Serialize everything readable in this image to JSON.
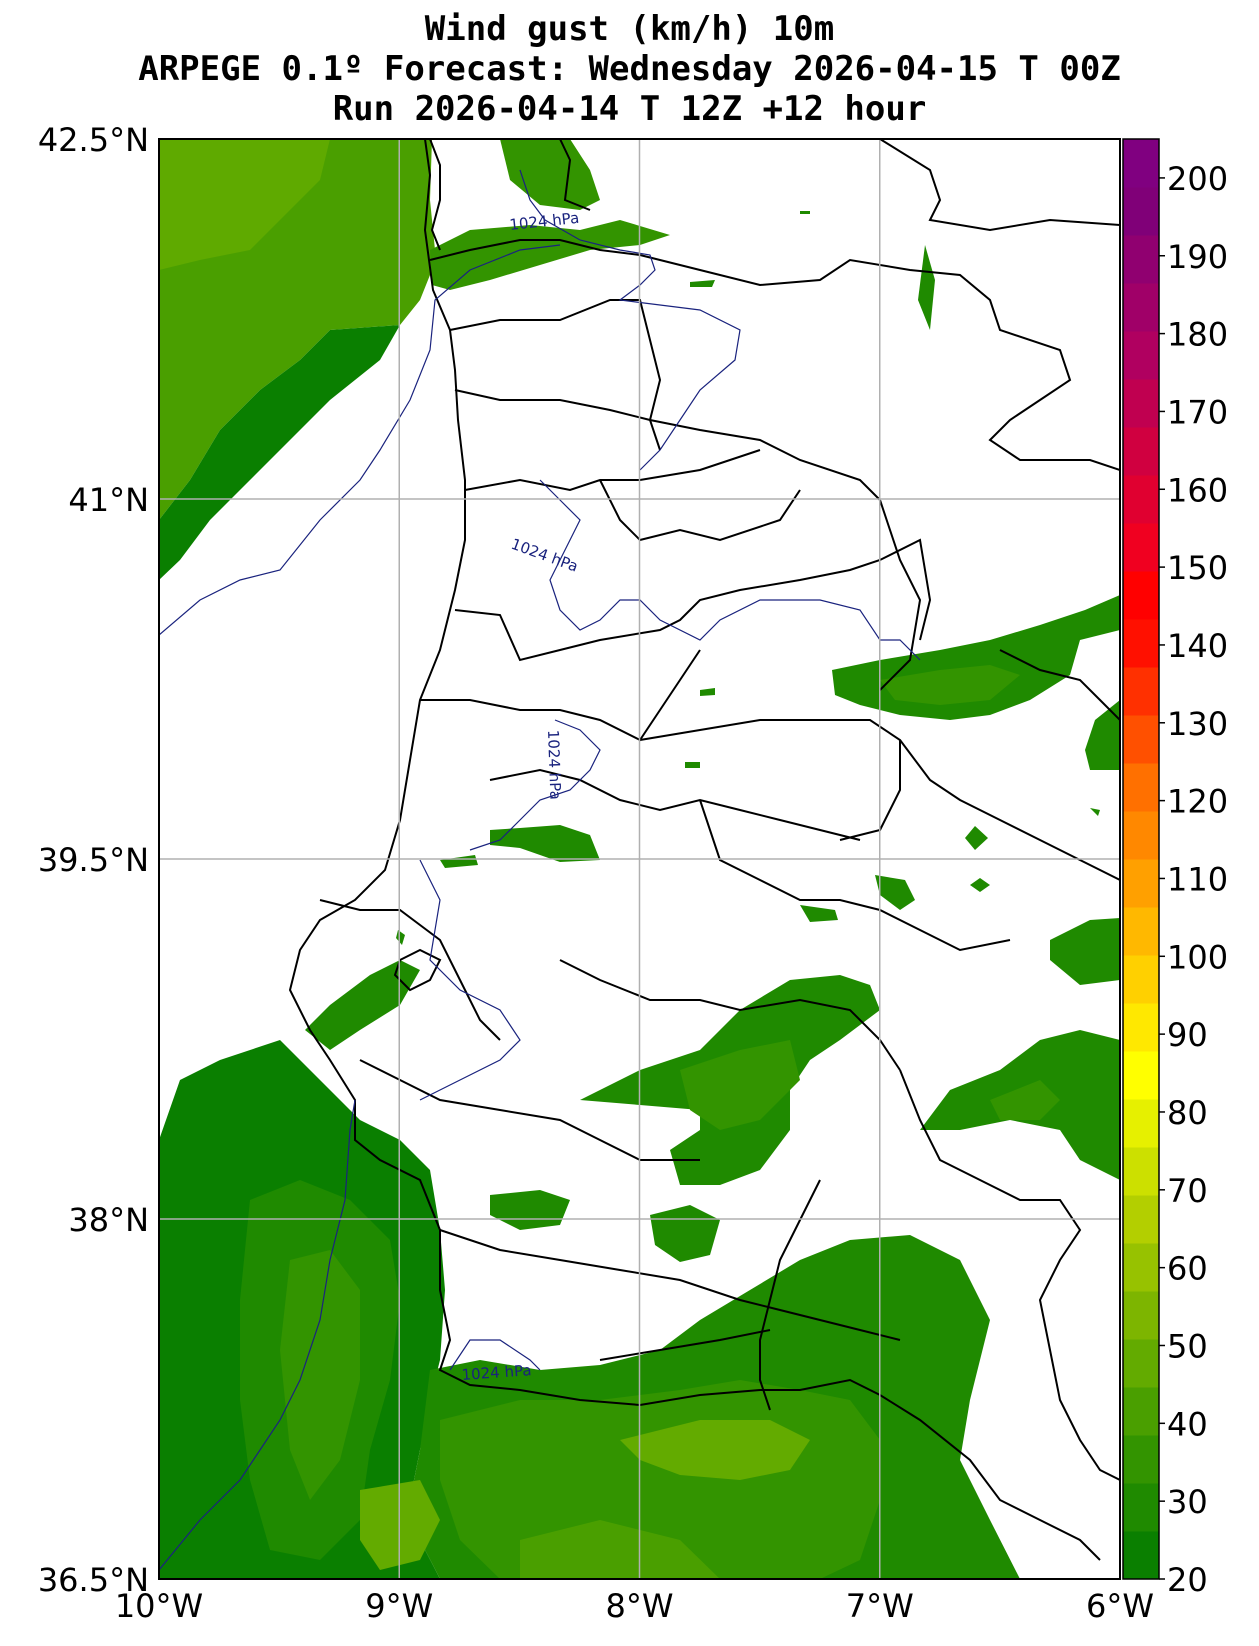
{
  "title": {
    "line1": "Wind gust (km/h) 10m",
    "line2": "ARPEGE 0.1º Forecast: Wednesday 2026-04-15 T 00Z",
    "line3": "Run 2026-04-14 T 12Z +12 hour"
  },
  "map": {
    "lon_range": [
      -10,
      -6
    ],
    "lat_range": [
      36.5,
      42.5
    ],
    "lat_ticks": [
      {
        "value": 42.5,
        "label": "42.5°N"
      },
      {
        "value": 41.0,
        "label": "41°N"
      },
      {
        "value": 39.5,
        "label": "39.5°N"
      },
      {
        "value": 38.0,
        "label": "38°N"
      },
      {
        "value": 36.5,
        "label": "36.5°N"
      }
    ],
    "lon_ticks": [
      {
        "value": -10,
        "label": "10°W"
      },
      {
        "value": -9,
        "label": "9°W"
      },
      {
        "value": -8,
        "label": "8°W"
      },
      {
        "value": -7,
        "label": "7°W"
      },
      {
        "value": -6,
        "label": "6°W"
      }
    ],
    "grid": true,
    "isobar_label": "1024 hPa"
  },
  "colorbar": {
    "min": 20,
    "max": 205,
    "ticks": [
      "20",
      "30",
      "40",
      "50",
      "60",
      "70",
      "80",
      "90",
      "100",
      "110",
      "120",
      "130",
      "140",
      "150",
      "160",
      "170",
      "180",
      "190",
      "200"
    ],
    "colors": [
      "#0a7f00",
      "#1f8a00",
      "#339400",
      "#4a9f00",
      "#63ab00",
      "#7db500",
      "#97c200",
      "#b3cf00",
      "#cce000",
      "#e6f000",
      "#ffff00",
      "#ffe800",
      "#ffd000",
      "#ffb800",
      "#ffa000",
      "#ff8800",
      "#ff7000",
      "#ff5000",
      "#ff3000",
      "#ff1000",
      "#ff0000",
      "#f00020",
      "#e00030",
      "#d00040",
      "#c00050",
      "#b00060",
      "#a00068",
      "#900070",
      "#800078",
      "#800080"
    ]
  }
}
